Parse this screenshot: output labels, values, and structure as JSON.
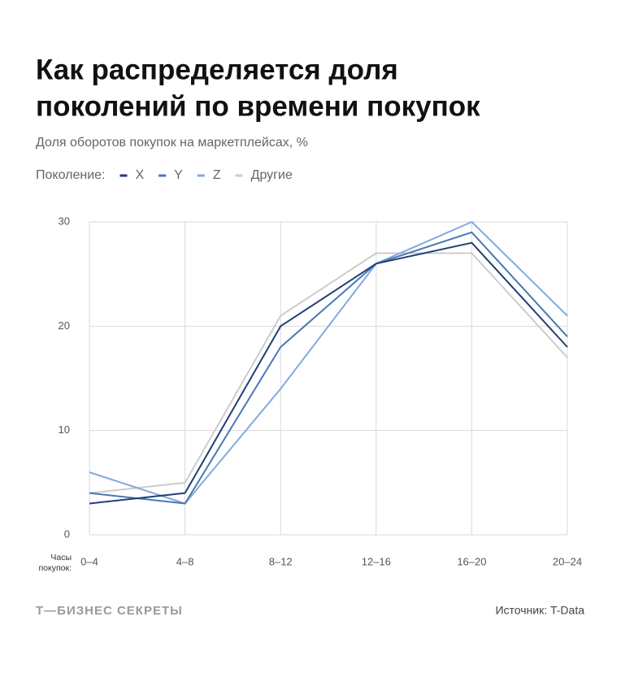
{
  "chart_data": {
    "type": "line",
    "title": [
      "Как распределяется доля",
      "поколений по времени покупок"
    ],
    "subtitle": "Доля оборотов покупок на маркетплейсах, %",
    "legend_title": "Поколение:",
    "x_label": "Часы покупок:",
    "categories": [
      "0–4",
      "4–8",
      "8–12",
      "12–16",
      "16–20",
      "20–24"
    ],
    "series": [
      {
        "name": "X",
        "color": "#1f3f75",
        "values": [
          3,
          4,
          20,
          26,
          28,
          18
        ]
      },
      {
        "name": "Y",
        "color": "#4a78b5",
        "values": [
          4,
          3,
          18,
          26,
          29,
          19
        ]
      },
      {
        "name": "Z",
        "color": "#82aade",
        "values": [
          6,
          3,
          14,
          26,
          30,
          21
        ]
      },
      {
        "name": "Другие",
        "color": "#cccccc",
        "values": [
          4,
          5,
          21,
          27,
          27,
          17
        ]
      }
    ],
    "ylim": [
      0,
      30
    ],
    "yticks": [
      0,
      10,
      20,
      30
    ],
    "grid": true,
    "brand": "Т—БИЗНЕС СЕКРЕТЫ",
    "source": "Источник: T-Data"
  }
}
